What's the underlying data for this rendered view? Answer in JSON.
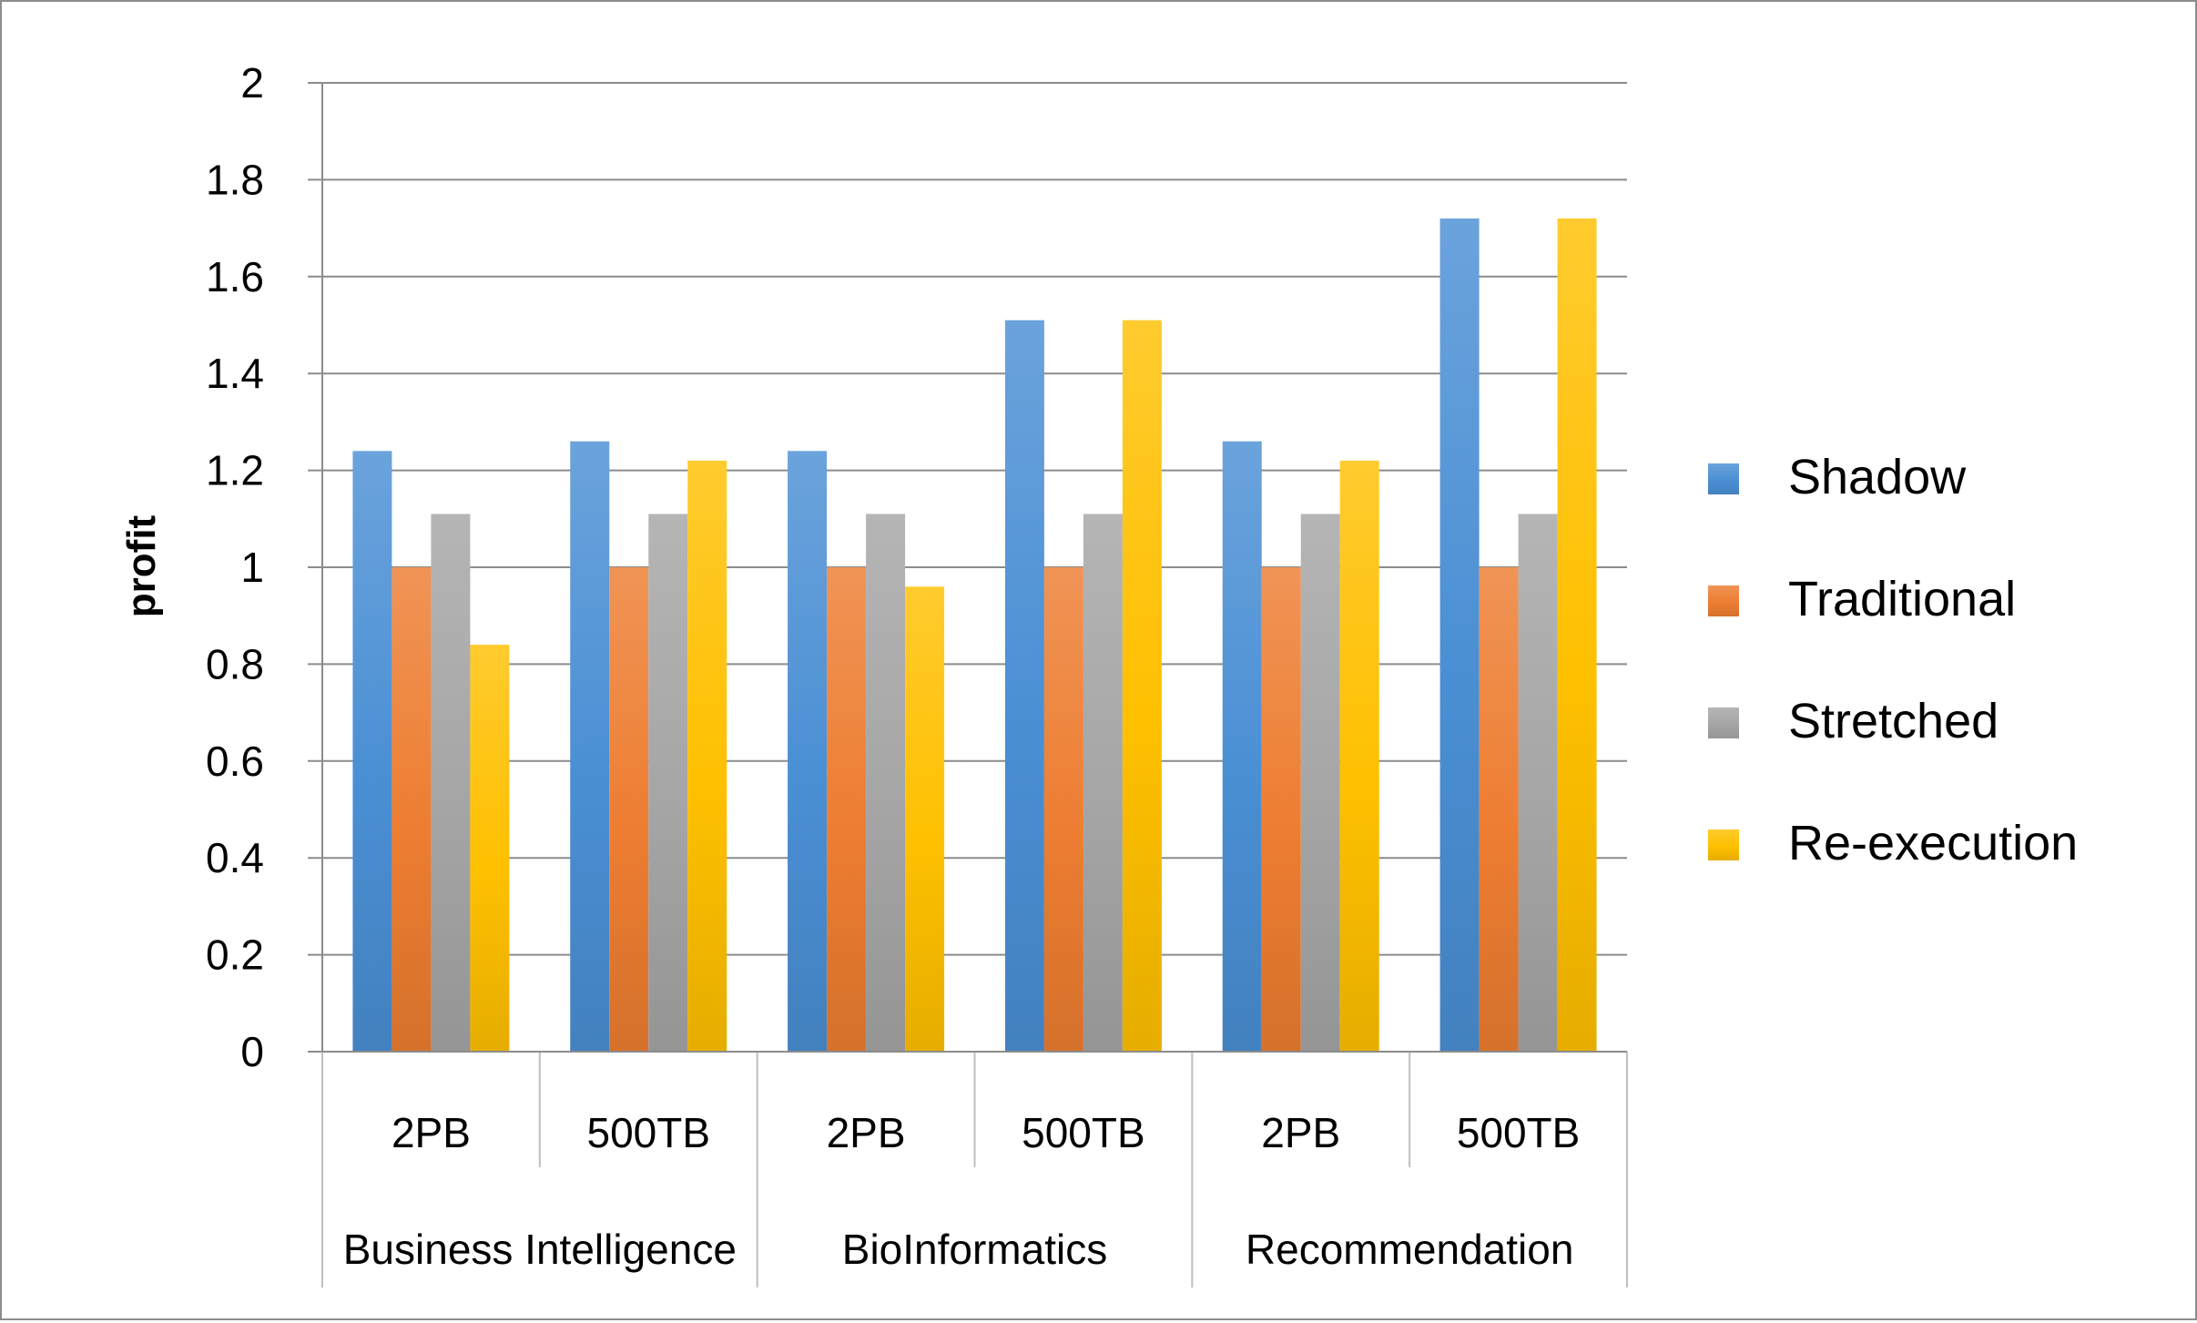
{
  "chart_data": {
    "type": "bar",
    "title": "",
    "xlabel": "",
    "ylabel": "profit",
    "ylim": [
      0,
      2
    ],
    "yticks": [
      "0",
      "0.2",
      "0.4",
      "0.6",
      "0.8",
      "1",
      "1.2",
      "1.4",
      "1.6",
      "1.8",
      "2"
    ],
    "categories": [
      "2PB",
      "500TB",
      "2PB",
      "500TB",
      "2PB",
      "500TB"
    ],
    "groups": [
      {
        "label": "Business Intelligence",
        "span": 2
      },
      {
        "label": "BioInformatics",
        "span": 2
      },
      {
        "label": "Recommendation",
        "span": 2
      }
    ],
    "series": [
      {
        "name": "Shadow",
        "color": "#4a8fd4",
        "values": [
          1.24,
          1.26,
          1.24,
          1.51,
          1.26,
          1.72
        ]
      },
      {
        "name": "Traditional",
        "color": "#ed7d31",
        "values": [
          1.0,
          1.0,
          1.0,
          1.0,
          1.0,
          1.0
        ]
      },
      {
        "name": "Stretched",
        "color": "#a5a5a5",
        "values": [
          1.11,
          1.11,
          1.11,
          1.11,
          1.11,
          1.11
        ]
      },
      {
        "name": "Re-execution",
        "color": "#ffc000",
        "values": [
          0.84,
          1.22,
          0.96,
          1.51,
          1.22,
          1.72
        ]
      }
    ],
    "grid": true,
    "legend_position": "right"
  }
}
